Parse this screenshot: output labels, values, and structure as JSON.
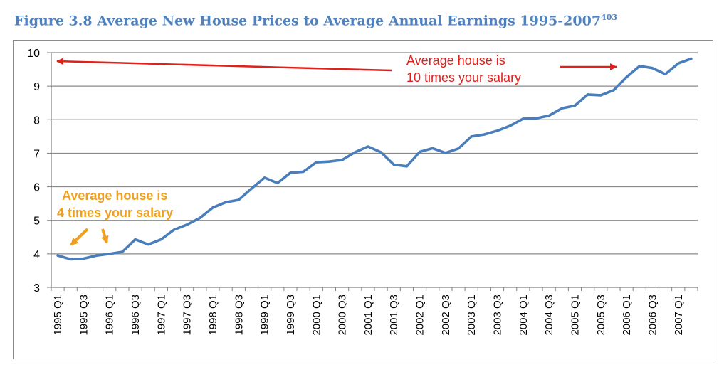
{
  "title": {
    "text": "Figure 3.8 Average New House Prices to Average Annual Earnings 1995-2007",
    "footnote": "403"
  },
  "colors": {
    "title": "#4f81bd",
    "line": "#4a7ebb",
    "red_annotation": "#e0201b",
    "orange_annotation": "#f0a020",
    "grid": "#8a8a8a"
  },
  "chart_data": {
    "type": "line",
    "title": "Figure 3.8 Average New House Prices to Average Annual Earnings 1995-2007",
    "xlabel": "",
    "ylabel": "",
    "ylim": [
      3,
      10
    ],
    "yticks": [
      3,
      4,
      5,
      6,
      7,
      8,
      9,
      10
    ],
    "grid": true,
    "legend": "none",
    "x_tick_labels": [
      "1995 Q1",
      "1995 Q3",
      "1996 Q1",
      "1996 Q3",
      "1997 Q1",
      "1997 Q3",
      "1998 Q1",
      "1998 Q3",
      "1999 Q1",
      "1999 Q3",
      "2000 Q1",
      "2000 Q3",
      "2001 Q1",
      "2001 Q3",
      "2002 Q1",
      "2002 Q3",
      "2003 Q1",
      "2003 Q3",
      "2004 Q1",
      "2004 Q3",
      "2005 Q1",
      "2005 Q3",
      "2006 Q1",
      "2006 Q3",
      "2007 Q1"
    ],
    "x": [
      "1995 Q1",
      "1995 Q2",
      "1995 Q3",
      "1995 Q4",
      "1996 Q1",
      "1996 Q2",
      "1996 Q3",
      "1996 Q4",
      "1997 Q1",
      "1997 Q2",
      "1997 Q3",
      "1997 Q4",
      "1998 Q1",
      "1998 Q2",
      "1998 Q3",
      "1998 Q4",
      "1999 Q1",
      "1999 Q2",
      "1999 Q3",
      "1999 Q4",
      "2000 Q1",
      "2000 Q2",
      "2000 Q3",
      "2000 Q4",
      "2001 Q1",
      "2001 Q2",
      "2001 Q3",
      "2001 Q4",
      "2002 Q1",
      "2002 Q2",
      "2002 Q3",
      "2002 Q4",
      "2003 Q1",
      "2003 Q2",
      "2003 Q3",
      "2003 Q4",
      "2004 Q1",
      "2004 Q2",
      "2004 Q3",
      "2004 Q4",
      "2005 Q1",
      "2005 Q2",
      "2005 Q3",
      "2005 Q4",
      "2006 Q1",
      "2006 Q2",
      "2006 Q3",
      "2006 Q4",
      "2007 Q1",
      "2007 Q2"
    ],
    "series": [
      {
        "values": [
          3.95,
          3.84,
          3.86,
          3.95,
          4.0,
          4.06,
          4.43,
          4.28,
          4.43,
          4.72,
          4.87,
          5.07,
          5.38,
          5.54,
          5.61,
          5.95,
          6.27,
          6.11,
          6.42,
          6.45,
          6.73,
          6.75,
          6.8,
          7.03,
          7.2,
          7.03,
          6.66,
          6.61,
          7.04,
          7.15,
          7.01,
          7.14,
          7.5,
          7.56,
          7.67,
          7.82,
          8.03,
          8.04,
          8.12,
          8.34,
          8.42,
          8.75,
          8.73,
          8.88,
          9.27,
          9.6,
          9.54,
          9.36,
          9.68,
          9.82
        ]
      }
    ],
    "annotations": [
      {
        "text_line1": "Average house is",
        "text_line2": "10 times your salary",
        "color": "red"
      },
      {
        "text_line1": "Average house is",
        "text_line2": "4 times your salary",
        "color": "orange"
      }
    ]
  }
}
